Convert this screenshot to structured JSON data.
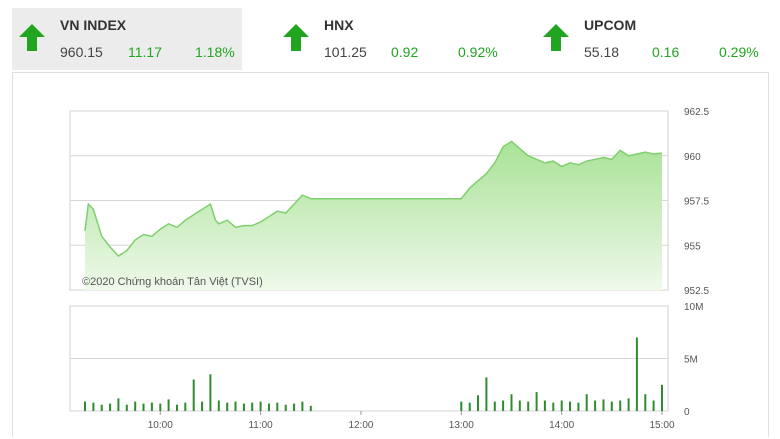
{
  "indices": [
    {
      "name": "VN INDEX",
      "value": "960.15",
      "change": "11.17",
      "percent": "1.18%",
      "direction": "up",
      "active": true
    },
    {
      "name": "HNX",
      "value": "101.25",
      "change": "0.92",
      "percent": "0.92%",
      "direction": "up",
      "active": false
    },
    {
      "name": "UPCOM",
      "value": "55.18",
      "change": "0.16",
      "percent": "0.29%",
      "direction": "up",
      "active": false
    }
  ],
  "colors": {
    "up": "#21a521",
    "area_top": "#bde8b0",
    "line": "#7fcf6e",
    "volume": "#2e8b2e",
    "grid": "#d6d6d6"
  },
  "chart_data": {
    "type": "area",
    "watermark": "©2020 Chứng khoán Tân Việt (TVSI)",
    "price_axis": {
      "ylim": [
        952.5,
        962.5
      ],
      "ticks": [
        "962.5",
        "960",
        "957.5",
        "955",
        "952.5"
      ]
    },
    "volume_axis": {
      "ylim": [
        0,
        10
      ],
      "ticks": [
        "10M",
        "5M",
        "0"
      ]
    },
    "time_axis": {
      "ticks": [
        "10:00",
        "11:00",
        "12:00",
        "13:00",
        "14:00",
        "15:00"
      ]
    },
    "price_series": [
      [
        "9:15",
        955.8
      ],
      [
        "9:17",
        957.3
      ],
      [
        "9:20",
        957.0
      ],
      [
        "9:25",
        955.5
      ],
      [
        "9:30",
        954.9
      ],
      [
        "9:35",
        954.4
      ],
      [
        "9:40",
        954.7
      ],
      [
        "9:45",
        955.3
      ],
      [
        "9:50",
        955.6
      ],
      [
        "9:55",
        955.5
      ],
      [
        "10:00",
        955.9
      ],
      [
        "10:05",
        956.2
      ],
      [
        "10:10",
        956.0
      ],
      [
        "10:15",
        956.4
      ],
      [
        "10:20",
        956.7
      ],
      [
        "10:25",
        957.0
      ],
      [
        "10:30",
        957.3
      ],
      [
        "10:33",
        956.4
      ],
      [
        "10:35",
        956.2
      ],
      [
        "10:40",
        956.4
      ],
      [
        "10:45",
        956.0
      ],
      [
        "10:50",
        956.1
      ],
      [
        "10:55",
        956.1
      ],
      [
        "11:00",
        956.3
      ],
      [
        "11:05",
        956.6
      ],
      [
        "11:10",
        956.9
      ],
      [
        "11:15",
        956.8
      ],
      [
        "11:20",
        957.3
      ],
      [
        "11:25",
        957.8
      ],
      [
        "11:30",
        957.6
      ],
      [
        "13:00",
        957.6
      ],
      [
        "13:05",
        958.2
      ],
      [
        "13:10",
        958.6
      ],
      [
        "13:15",
        959.0
      ],
      [
        "13:20",
        959.6
      ],
      [
        "13:25",
        960.5
      ],
      [
        "13:30",
        960.8
      ],
      [
        "13:35",
        960.4
      ],
      [
        "13:40",
        960.0
      ],
      [
        "13:45",
        959.8
      ],
      [
        "13:50",
        959.6
      ],
      [
        "13:55",
        959.7
      ],
      [
        "14:00",
        959.4
      ],
      [
        "14:05",
        959.6
      ],
      [
        "14:10",
        959.5
      ],
      [
        "14:15",
        959.7
      ],
      [
        "14:20",
        959.8
      ],
      [
        "14:25",
        959.9
      ],
      [
        "14:30",
        959.8
      ],
      [
        "14:35",
        960.3
      ],
      [
        "14:40",
        960.0
      ],
      [
        "14:45",
        960.1
      ],
      [
        "14:50",
        960.2
      ],
      [
        "14:55",
        960.1
      ],
      [
        "15:00",
        960.15
      ]
    ],
    "volume_series": [
      [
        "9:15",
        0.9
      ],
      [
        "9:20",
        0.8
      ],
      [
        "9:25",
        0.6
      ],
      [
        "9:30",
        0.7
      ],
      [
        "9:35",
        1.2
      ],
      [
        "9:40",
        0.6
      ],
      [
        "9:45",
        0.9
      ],
      [
        "9:50",
        0.7
      ],
      [
        "9:55",
        0.8
      ],
      [
        "10:00",
        0.7
      ],
      [
        "10:05",
        1.1
      ],
      [
        "10:10",
        0.6
      ],
      [
        "10:15",
        0.8
      ],
      [
        "10:20",
        3.0
      ],
      [
        "10:25",
        0.9
      ],
      [
        "10:30",
        3.5
      ],
      [
        "10:35",
        1.0
      ],
      [
        "10:40",
        0.8
      ],
      [
        "10:45",
        0.9
      ],
      [
        "10:50",
        0.7
      ],
      [
        "10:55",
        0.8
      ],
      [
        "11:00",
        0.9
      ],
      [
        "11:05",
        0.7
      ],
      [
        "11:10",
        0.8
      ],
      [
        "11:15",
        0.6
      ],
      [
        "11:20",
        0.7
      ],
      [
        "11:25",
        0.9
      ],
      [
        "11:30",
        0.5
      ],
      [
        "13:00",
        0.9
      ],
      [
        "13:05",
        0.8
      ],
      [
        "13:10",
        1.5
      ],
      [
        "13:15",
        3.2
      ],
      [
        "13:20",
        0.9
      ],
      [
        "13:25",
        1.0
      ],
      [
        "13:30",
        1.6
      ],
      [
        "13:35",
        1.0
      ],
      [
        "13:40",
        0.9
      ],
      [
        "13:45",
        1.8
      ],
      [
        "13:50",
        1.0
      ],
      [
        "13:55",
        0.8
      ],
      [
        "14:00",
        1.0
      ],
      [
        "14:05",
        0.9
      ],
      [
        "14:10",
        0.8
      ],
      [
        "14:15",
        1.6
      ],
      [
        "14:20",
        1.0
      ],
      [
        "14:25",
        1.1
      ],
      [
        "14:30",
        0.9
      ],
      [
        "14:35",
        1.0
      ],
      [
        "14:40",
        1.2
      ],
      [
        "14:45",
        7.0
      ],
      [
        "14:50",
        1.6
      ],
      [
        "14:55",
        1.0
      ],
      [
        "15:00",
        2.5
      ]
    ]
  }
}
